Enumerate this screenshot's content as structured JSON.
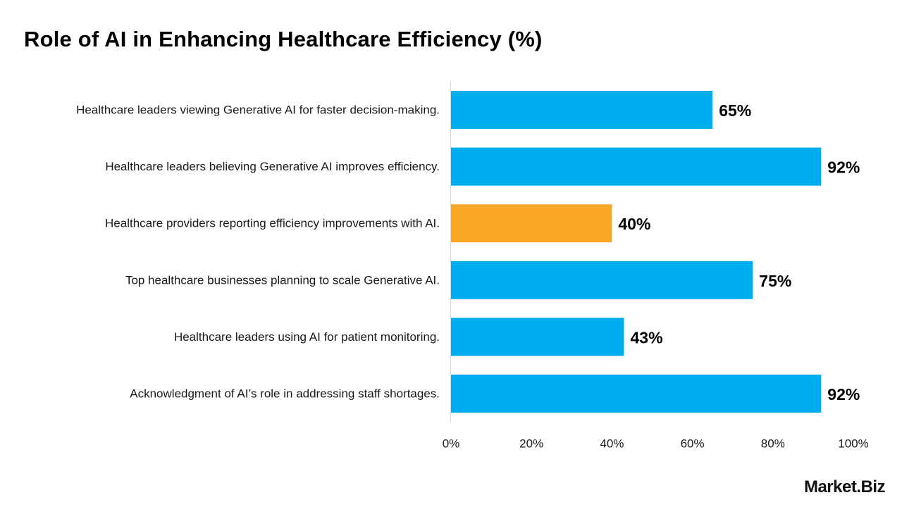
{
  "chart_data": {
    "type": "bar",
    "orientation": "horizontal",
    "title": "Role of AI in Enhancing Healthcare Efficiency (%)",
    "categories": [
      "Healthcare leaders viewing Generative AI for faster decision-making.",
      "Healthcare leaders believing Generative AI improves efficiency.",
      "Healthcare providers reporting efficiency improvements with AI.",
      "Top healthcare businesses planning to scale Generative AI.",
      "Healthcare leaders using AI for patient monitoring.",
      "Acknowledgment of AI’s role in addressing staff shortages."
    ],
    "values": [
      65,
      92,
      40,
      75,
      43,
      92
    ],
    "value_labels": [
      "65%",
      "92%",
      "40%",
      "75%",
      "43%",
      "92%"
    ],
    "bar_colors": [
      "#00AEEF",
      "#00AEEF",
      "#F9A825",
      "#00AEEF",
      "#00AEEF",
      "#00AEEF"
    ],
    "xlim": [
      0,
      100
    ],
    "xticks": [
      0,
      20,
      40,
      60,
      80,
      100
    ],
    "xtick_labels": [
      "0%",
      "20%",
      "40%",
      "60%",
      "80%",
      "100%"
    ],
    "xlabel": "",
    "ylabel": "",
    "grid": false,
    "legend": "none"
  },
  "brand": {
    "name": "Market.Biz"
  },
  "colors": {
    "primary_bar": "#00AEEF",
    "highlight_bar": "#F9A825",
    "axis_line": "#D9D9D9",
    "text": "#1A1A1A"
  }
}
